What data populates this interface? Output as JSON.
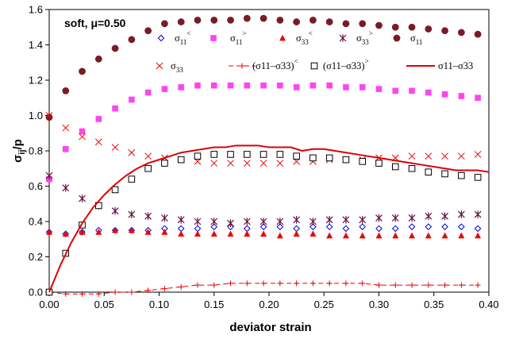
{
  "chart_data": {
    "type": "scatter",
    "annotation": "soft, μ=0.50",
    "xlabel": "deviator strain",
    "ylabel": "σij/p",
    "xlim": [
      0,
      0.4
    ],
    "ylim": [
      0,
      1.6
    ],
    "x_ticks": [
      "0.00",
      "0.05",
      "0.10",
      "0.15",
      "0.20",
      "0.25",
      "0.30",
      "0.35",
      "0.40"
    ],
    "y_ticks": [
      "0.0",
      "0.2",
      "0.4",
      "0.6",
      "0.8",
      "1.0",
      "1.2",
      "1.4",
      "1.6"
    ],
    "grid": false,
    "legend_position": "inside-top",
    "series": [
      {
        "name": "σ11<",
        "base": "σ",
        "sub": "11",
        "sup": "<",
        "marker": "diamond-open",
        "color": "#0000cc",
        "x": [
          0.0,
          0.015,
          0.03,
          0.045,
          0.06,
          0.075,
          0.09,
          0.105,
          0.12,
          0.135,
          0.15,
          0.165,
          0.18,
          0.195,
          0.21,
          0.225,
          0.24,
          0.255,
          0.27,
          0.285,
          0.3,
          0.315,
          0.33,
          0.345,
          0.36,
          0.375,
          0.39
        ],
        "y": [
          0.34,
          0.33,
          0.34,
          0.35,
          0.35,
          0.35,
          0.35,
          0.36,
          0.36,
          0.36,
          0.37,
          0.37,
          0.36,
          0.37,
          0.37,
          0.36,
          0.37,
          0.37,
          0.36,
          0.37,
          0.36,
          0.36,
          0.37,
          0.37,
          0.37,
          0.37,
          0.36
        ]
      },
      {
        "name": "σ11>",
        "base": "σ",
        "sub": "11",
        "sup": ">",
        "marker": "square-filled",
        "color": "#ff44ee",
        "x": [
          0.0,
          0.015,
          0.03,
          0.045,
          0.06,
          0.075,
          0.09,
          0.105,
          0.12,
          0.135,
          0.15,
          0.165,
          0.18,
          0.195,
          0.21,
          0.225,
          0.24,
          0.255,
          0.27,
          0.285,
          0.3,
          0.315,
          0.33,
          0.345,
          0.36,
          0.375,
          0.39
        ],
        "y": [
          0.64,
          0.81,
          0.91,
          0.98,
          1.04,
          1.09,
          1.13,
          1.15,
          1.16,
          1.17,
          1.17,
          1.17,
          1.17,
          1.17,
          1.17,
          1.16,
          1.17,
          1.17,
          1.16,
          1.16,
          1.15,
          1.14,
          1.14,
          1.13,
          1.12,
          1.11,
          1.1
        ]
      },
      {
        "name": "σ33<",
        "base": "σ",
        "sub": "33",
        "sup": "<",
        "marker": "triangle-filled",
        "color": "#ee0000",
        "x": [
          0.0,
          0.015,
          0.03,
          0.045,
          0.06,
          0.075,
          0.09,
          0.105,
          0.12,
          0.135,
          0.15,
          0.165,
          0.18,
          0.195,
          0.21,
          0.225,
          0.24,
          0.255,
          0.27,
          0.285,
          0.3,
          0.315,
          0.33,
          0.345,
          0.36,
          0.375,
          0.39
        ],
        "y": [
          0.34,
          0.33,
          0.34,
          0.34,
          0.35,
          0.35,
          0.34,
          0.34,
          0.33,
          0.33,
          0.33,
          0.33,
          0.33,
          0.33,
          0.32,
          0.33,
          0.33,
          0.32,
          0.32,
          0.32,
          0.32,
          0.32,
          0.32,
          0.32,
          0.32,
          0.32,
          0.32
        ]
      },
      {
        "name": "σ33>",
        "base": "σ",
        "sub": "33",
        "sup": ">",
        "marker": "asterisk",
        "color": "#661144",
        "x": [
          0.0,
          0.015,
          0.03,
          0.045,
          0.06,
          0.075,
          0.09,
          0.105,
          0.12,
          0.135,
          0.15,
          0.165,
          0.18,
          0.195,
          0.21,
          0.225,
          0.24,
          0.255,
          0.27,
          0.285,
          0.3,
          0.315,
          0.33,
          0.345,
          0.36,
          0.375,
          0.39
        ],
        "y": [
          0.66,
          0.59,
          0.53,
          0.49,
          0.46,
          0.44,
          0.43,
          0.42,
          0.41,
          0.4,
          0.4,
          0.39,
          0.4,
          0.4,
          0.4,
          0.41,
          0.4,
          0.41,
          0.41,
          0.41,
          0.42,
          0.42,
          0.42,
          0.43,
          0.43,
          0.44,
          0.44
        ]
      },
      {
        "name": "σ11",
        "base": "σ",
        "sub": "11",
        "sup": "",
        "marker": "circle-filled",
        "color": "#7a1b2a",
        "x": [
          0.0,
          0.015,
          0.03,
          0.045,
          0.06,
          0.075,
          0.09,
          0.105,
          0.12,
          0.135,
          0.15,
          0.165,
          0.18,
          0.195,
          0.21,
          0.225,
          0.24,
          0.255,
          0.27,
          0.285,
          0.3,
          0.315,
          0.33,
          0.345,
          0.36,
          0.375,
          0.39
        ],
        "y": [
          0.99,
          1.14,
          1.25,
          1.32,
          1.38,
          1.43,
          1.48,
          1.52,
          1.53,
          1.54,
          1.54,
          1.54,
          1.55,
          1.55,
          1.54,
          1.53,
          1.54,
          1.53,
          1.52,
          1.52,
          1.51,
          1.5,
          1.5,
          1.49,
          1.48,
          1.47,
          1.46
        ]
      },
      {
        "name": "σ33",
        "base": "σ",
        "sub": "33",
        "sup": "",
        "marker": "x",
        "color": "#ee0000",
        "x": [
          0.0,
          0.015,
          0.03,
          0.045,
          0.06,
          0.075,
          0.09,
          0.105,
          0.12,
          0.135,
          0.15,
          0.165,
          0.18,
          0.195,
          0.21,
          0.225,
          0.24,
          0.255,
          0.27,
          0.285,
          0.3,
          0.315,
          0.33,
          0.345,
          0.36,
          0.375,
          0.39
        ],
        "y": [
          1.0,
          0.93,
          0.88,
          0.85,
          0.82,
          0.79,
          0.77,
          0.76,
          0.75,
          0.74,
          0.73,
          0.73,
          0.73,
          0.73,
          0.73,
          0.74,
          0.74,
          0.75,
          0.75,
          0.75,
          0.76,
          0.76,
          0.77,
          0.77,
          0.77,
          0.77,
          0.78
        ]
      },
      {
        "name": "(σ11–σ33)<",
        "base": "(σ11–σ33)",
        "sub": "",
        "sup": "<",
        "marker": "plus-dashed",
        "color": "#ee0000",
        "x": [
          0.0,
          0.015,
          0.03,
          0.045,
          0.06,
          0.075,
          0.09,
          0.105,
          0.12,
          0.135,
          0.15,
          0.165,
          0.18,
          0.195,
          0.21,
          0.225,
          0.24,
          0.255,
          0.27,
          0.285,
          0.3,
          0.315,
          0.33,
          0.345,
          0.36,
          0.375,
          0.39
        ],
        "y": [
          0.0,
          -0.01,
          -0.01,
          -0.01,
          0.0,
          0.0,
          0.01,
          0.02,
          0.03,
          0.04,
          0.04,
          0.05,
          0.05,
          0.05,
          0.05,
          0.05,
          0.05,
          0.05,
          0.05,
          0.05,
          0.04,
          0.04,
          0.04,
          0.04,
          0.04,
          0.04,
          0.04
        ]
      },
      {
        "name": "(σ11–σ33)>",
        "base": "(σ11–σ33)",
        "sub": "",
        "sup": ">",
        "marker": "square-open",
        "color": "#000000",
        "x": [
          0.0,
          0.015,
          0.03,
          0.045,
          0.06,
          0.075,
          0.09,
          0.105,
          0.12,
          0.135,
          0.15,
          0.165,
          0.18,
          0.195,
          0.21,
          0.225,
          0.24,
          0.255,
          0.27,
          0.285,
          0.3,
          0.315,
          0.33,
          0.345,
          0.36,
          0.375,
          0.39
        ],
        "y": [
          0.0,
          0.22,
          0.38,
          0.49,
          0.58,
          0.64,
          0.7,
          0.73,
          0.75,
          0.77,
          0.78,
          0.78,
          0.78,
          0.78,
          0.78,
          0.77,
          0.76,
          0.76,
          0.75,
          0.74,
          0.73,
          0.71,
          0.7,
          0.68,
          0.67,
          0.66,
          0.65
        ]
      },
      {
        "name": "σ11–σ33",
        "base": "σ11–σ33",
        "sub": "",
        "sup": "",
        "marker": "line",
        "color": "#dd0000",
        "x": [
          0.0,
          0.01,
          0.02,
          0.03,
          0.04,
          0.05,
          0.06,
          0.07,
          0.08,
          0.09,
          0.1,
          0.11,
          0.12,
          0.13,
          0.14,
          0.15,
          0.16,
          0.17,
          0.18,
          0.19,
          0.2,
          0.21,
          0.22,
          0.23,
          0.24,
          0.25,
          0.26,
          0.27,
          0.28,
          0.29,
          0.3,
          0.31,
          0.32,
          0.33,
          0.34,
          0.35,
          0.36,
          0.37,
          0.38,
          0.39,
          0.4
        ],
        "y": [
          0.0,
          0.15,
          0.28,
          0.39,
          0.48,
          0.55,
          0.61,
          0.66,
          0.7,
          0.73,
          0.75,
          0.77,
          0.79,
          0.8,
          0.81,
          0.82,
          0.82,
          0.83,
          0.83,
          0.83,
          0.82,
          0.82,
          0.82,
          0.8,
          0.81,
          0.81,
          0.8,
          0.79,
          0.78,
          0.77,
          0.76,
          0.75,
          0.74,
          0.73,
          0.72,
          0.71,
          0.7,
          0.69,
          0.69,
          0.69,
          0.68
        ]
      }
    ]
  }
}
